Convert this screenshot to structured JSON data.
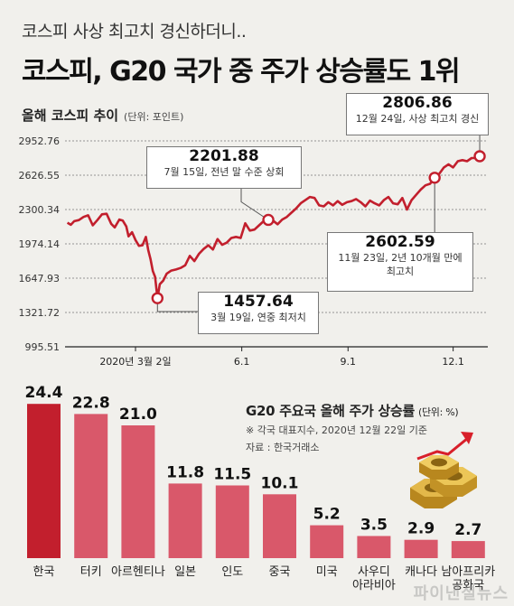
{
  "subtitle": "코스피 사상 최고치 경신하더니..",
  "title": "코스피, G20 국가 중 주가 상승률도 1위",
  "line_section": {
    "title": "올해 코스피 추이",
    "unit": "(단위: 포인트)"
  },
  "bar_section": {
    "title": "G20 주요국 올해 주가 상승률",
    "unit": "(단위: %)",
    "note1": "※ 각국 대표지수, 2020년 12월 22일 기준",
    "note2": "자료 : 한국거래소"
  },
  "annotations": [
    {
      "value": "2806.86",
      "desc": "12월 24일, 사상 최고치 경신"
    },
    {
      "value": "2201.88",
      "desc": "7월 15일, 전년 말 수준 상회"
    },
    {
      "value": "2602.59",
      "desc": "11월 23일, 2년 10개월 만에",
      "desc2": "최고치"
    },
    {
      "value": "1457.64",
      "desc": "3월 19일, 연중 최저치"
    }
  ],
  "watermark": "파이낸셜뉴스",
  "colors": {
    "line": "#c21f2d",
    "bar_top": "#c21f2d",
    "bar": "#d9586a"
  },
  "icon": "gold-coins-rising-arrow-icon",
  "chart_data": [
    {
      "type": "line",
      "title": "올해 코스피 추이",
      "ylabel": "(단위: 포인트)",
      "ylim": [
        995.51,
        2952.76
      ],
      "yticks": [
        2952.76,
        2626.55,
        2300.34,
        1974.14,
        1647.93,
        1321.72,
        995.51
      ],
      "xticks": [
        {
          "label": "2020년 3월 2일",
          "day": 61
        },
        {
          "label": "6.1",
          "day": 153
        },
        {
          "label": "9.1",
          "day": 245
        },
        {
          "label": "12.1",
          "day": 336
        }
      ],
      "series": [
        {
          "x": [
            2,
            5,
            8,
            12,
            16,
            20,
            24,
            28,
            32,
            36,
            40,
            43,
            47,
            50,
            53,
            55,
            58,
            61,
            64,
            67,
            70,
            72,
            74,
            76,
            78,
            80,
            82,
            85,
            88,
            92,
            96,
            100,
            104,
            108,
            112,
            116,
            120,
            124,
            128,
            132,
            136,
            140,
            144,
            148,
            152,
            156,
            160,
            164,
            168,
            172,
            176,
            180,
            184,
            188,
            192,
            196,
            200,
            204,
            208,
            212,
            216,
            220,
            224,
            228,
            232,
            236,
            240,
            244,
            248,
            252,
            256,
            260,
            264,
            268,
            272,
            276,
            280,
            284,
            288,
            292,
            296,
            300,
            304,
            308,
            312,
            316,
            320,
            324,
            328,
            332,
            336,
            340,
            344,
            348,
            352,
            356,
            359
          ],
          "y": [
            2175,
            2155,
            2190,
            2200,
            2230,
            2245,
            2150,
            2200,
            2255,
            2260,
            2165,
            2130,
            2205,
            2195,
            2140,
            2045,
            2085,
            2010,
            1955,
            1960,
            2040,
            1915,
            1830,
            1715,
            1660,
            1457.64,
            1590,
            1625,
            1690,
            1720,
            1730,
            1745,
            1770,
            1860,
            1810,
            1880,
            1925,
            1960,
            1920,
            2020,
            1965,
            1985,
            2030,
            2040,
            2030,
            2170,
            2100,
            2110,
            2150,
            2190,
            2201.88,
            2195,
            2160,
            2205,
            2230,
            2270,
            2310,
            2360,
            2390,
            2420,
            2410,
            2340,
            2330,
            2370,
            2340,
            2380,
            2345,
            2370,
            2380,
            2400,
            2370,
            2330,
            2385,
            2360,
            2340,
            2390,
            2420,
            2360,
            2350,
            2410,
            2300,
            2390,
            2440,
            2490,
            2530,
            2545,
            2602.59,
            2640,
            2700,
            2730,
            2700,
            2760,
            2770,
            2760,
            2790,
            2790,
            2806.86
          ]
        }
      ]
    },
    {
      "type": "bar",
      "title": "G20 주요국 올해 주가 상승률",
      "ylabel": "(단위: %)",
      "categories": [
        "한국",
        "터키",
        "아르헨티나",
        "일본",
        "인도",
        "중국",
        "미국",
        "사우디아라비아",
        "캐나다",
        "남아프리카공화국"
      ],
      "values": [
        24.4,
        22.8,
        21.0,
        11.8,
        11.5,
        10.1,
        5.2,
        3.5,
        2.9,
        2.7
      ]
    }
  ]
}
